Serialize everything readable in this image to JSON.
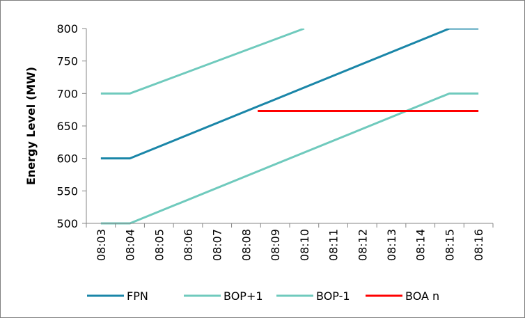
{
  "chart_data": {
    "type": "line",
    "title": "",
    "xlabel": "",
    "ylabel": "Energy Level (MW)",
    "categories": [
      "08:03",
      "08:04",
      "08:05",
      "08:06",
      "08:07",
      "08:08",
      "08:09",
      "08:10",
      "08:11",
      "08:12",
      "08:13",
      "08:14",
      "08:15",
      "08:16"
    ],
    "ylim": [
      500,
      800
    ],
    "yticks": [
      500,
      550,
      600,
      650,
      700,
      750,
      800
    ],
    "grid": false,
    "legend_position": "bottom",
    "series": [
      {
        "name": "FPN",
        "color": "#1a86a8",
        "points": [
          [
            0,
            600
          ],
          [
            1,
            600
          ],
          [
            12,
            800
          ],
          [
            13,
            800
          ]
        ]
      },
      {
        "name": "BOP+1",
        "color": "#6fcabd",
        "points": [
          [
            0,
            700
          ],
          [
            1,
            700
          ],
          [
            7,
            800
          ]
        ]
      },
      {
        "name": "BOP-1",
        "color": "#6fcabd",
        "points": [
          [
            0,
            500
          ],
          [
            1,
            500
          ],
          [
            12,
            700
          ],
          [
            13,
            700
          ]
        ]
      },
      {
        "name": "BOA n",
        "color": "#ff0000",
        "points": [
          [
            5.4,
            673
          ],
          [
            13,
            673
          ]
        ]
      }
    ]
  }
}
